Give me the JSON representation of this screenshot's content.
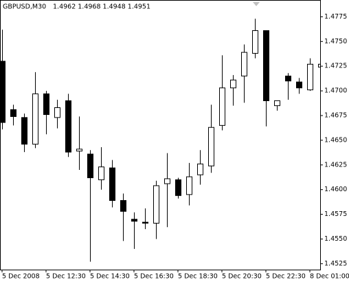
{
  "chart_data": {
    "type": "candlestick",
    "title": "GBPUSD,M30",
    "subtitle": "1.4962 1.4968 1.4948 1.4951",
    "categories": [
      "5 Dec 2008",
      null,
      null,
      null,
      "5 Dec 12:30",
      null,
      null,
      null,
      "5 Dec 14:30",
      null,
      null,
      null,
      "5 Dec 16:30",
      null,
      null,
      null,
      "5 Dec 18:30",
      null,
      null,
      null,
      "5 Dec 20:30",
      null,
      null,
      null,
      "5 Dec 22:30",
      null,
      null,
      null,
      "8 Dec 01:00",
      null
    ],
    "open": [
      1.473,
      1.4681,
      1.4673,
      1.4646,
      1.4697,
      1.4673,
      1.469,
      1.4639,
      1.4636,
      1.461,
      1.4622,
      1.4589,
      1.457,
      1.4567,
      1.4566,
      1.4606,
      1.461,
      1.4595,
      1.4615,
      1.4624,
      1.4665,
      1.4703,
      1.4715,
      1.4738,
      1.4761,
      1.4685,
      1.4715,
      1.4709,
      1.4701,
      1.4724
    ],
    "high": [
      1.4762,
      1.4686,
      1.4677,
      1.4719,
      1.47,
      1.4691,
      1.4697,
      1.4674,
      1.464,
      1.4643,
      1.463,
      1.4596,
      1.4577,
      1.4581,
      1.4609,
      1.4637,
      1.4612,
      1.4627,
      1.464,
      1.4686,
      1.4736,
      1.4716,
      1.4747,
      1.4773,
      1.4761,
      1.469,
      1.4718,
      1.4713,
      1.4733,
      1.4733
    ],
    "low": [
      1.4661,
      1.4665,
      1.4638,
      1.4642,
      1.4656,
      1.4662,
      1.4633,
      1.462,
      1.4527,
      1.46,
      1.4582,
      1.4548,
      1.454,
      1.456,
      1.455,
      1.4562,
      1.4591,
      1.4584,
      1.4605,
      1.4617,
      1.466,
      1.4685,
      1.4688,
      1.4733,
      1.4664,
      1.468,
      1.4691,
      1.4697,
      1.47,
      1.4715
    ],
    "close": [
      1.4668,
      1.4674,
      1.4646,
      1.4697,
      1.4676,
      1.4683,
      1.4638,
      1.4641,
      1.4612,
      1.4623,
      1.4589,
      1.4578,
      1.4568,
      1.4566,
      1.4604,
      1.4611,
      1.4594,
      1.4613,
      1.4626,
      1.4663,
      1.4703,
      1.4711,
      1.4739,
      1.4761,
      1.469,
      1.469,
      1.471,
      1.4703,
      1.4727,
      1.4727
    ],
    "up_color": "#ffffff",
    "down_color": "#000000",
    "line_color": "#000000",
    "ylim": [
      1.4519,
      1.4792
    ],
    "yticks": [
      1.4525,
      {
        "value": 1.455,
        "label": "1.4550"
      },
      1.4575,
      {
        "value": 1.46,
        "label": "1.4600"
      },
      1.4625,
      {
        "value": 1.465,
        "label": "1.4650"
      },
      1.4675,
      {
        "value": 1.47,
        "label": "1.4700"
      },
      1.4725,
      {
        "value": 1.475,
        "label": "1.4750"
      },
      1.4775
    ],
    "grid": false
  }
}
